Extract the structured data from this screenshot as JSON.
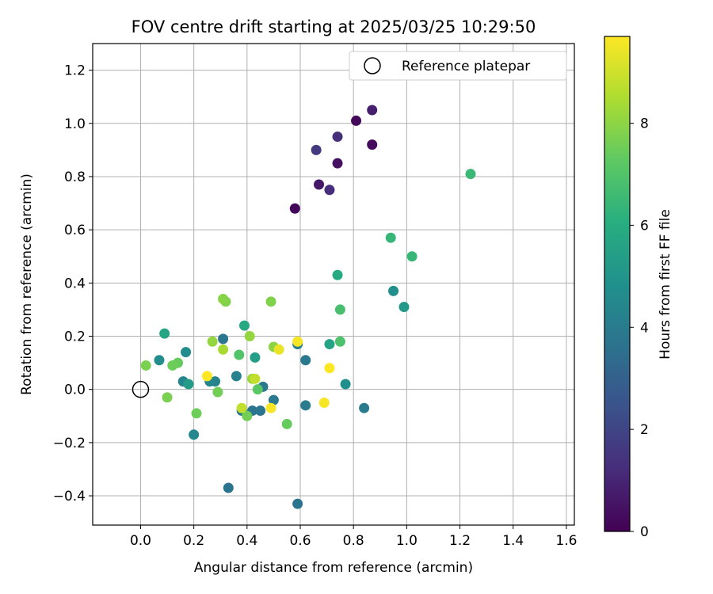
{
  "chart_data": {
    "type": "scatter",
    "title": "FOV centre drift starting at 2025/03/25 10:29:50",
    "xlabel": "Angular distance from reference (arcmin)",
    "ylabel": "Rotation from reference (arcmin)",
    "xlim": [
      -0.18,
      1.63
    ],
    "ylim": [
      -0.51,
      1.3
    ],
    "xticks": [
      0.0,
      0.2,
      0.4,
      0.6,
      0.8,
      1.0,
      1.2,
      1.4,
      1.6
    ],
    "xtick_labels": [
      "0.0",
      "0.2",
      "0.4",
      "0.6",
      "0.8",
      "1.0",
      "1.2",
      "1.4",
      "1.6"
    ],
    "yticks": [
      -0.4,
      -0.2,
      0.0,
      0.2,
      0.4,
      0.6,
      0.8,
      1.0,
      1.2
    ],
    "ytick_labels": [
      "−0.4",
      "−0.2",
      "0.0",
      "0.2",
      "0.4",
      "0.6",
      "0.8",
      "1.0",
      "1.2"
    ],
    "grid": true,
    "legend": {
      "position": "top-right",
      "entries": [
        "Reference platepar"
      ]
    },
    "colorbar": {
      "label": "Hours from first FF file",
      "colormap": "viridis",
      "range": [
        0,
        9.7
      ],
      "ticks": [
        0,
        2,
        4,
        6,
        8
      ],
      "tick_labels": [
        "0",
        "2",
        "4",
        "6",
        "8"
      ]
    },
    "reference_point": {
      "x": 0.0,
      "y": 0.0
    },
    "points": [
      {
        "x": 0.58,
        "y": 0.68,
        "hours": 0.2
      },
      {
        "x": 0.81,
        "y": 1.01,
        "hours": 0.2
      },
      {
        "x": 0.87,
        "y": 0.92,
        "hours": 0.3
      },
      {
        "x": 0.74,
        "y": 0.85,
        "hours": 0.4
      },
      {
        "x": 0.67,
        "y": 0.77,
        "hours": 0.6
      },
      {
        "x": 0.87,
        "y": 1.05,
        "hours": 0.8
      },
      {
        "x": 0.71,
        "y": 0.75,
        "hours": 1.2
      },
      {
        "x": 0.74,
        "y": 0.95,
        "hours": 1.3
      },
      {
        "x": 0.66,
        "y": 0.9,
        "hours": 1.6
      },
      {
        "x": 0.33,
        "y": -0.37,
        "hours": 3.7
      },
      {
        "x": 0.59,
        "y": -0.43,
        "hours": 3.7
      },
      {
        "x": 0.31,
        "y": 0.19,
        "hours": 3.8
      },
      {
        "x": 0.42,
        "y": -0.08,
        "hours": 3.8
      },
      {
        "x": 0.45,
        "y": -0.08,
        "hours": 3.8
      },
      {
        "x": 0.5,
        "y": -0.04,
        "hours": 3.9
      },
      {
        "x": 0.38,
        "y": -0.08,
        "hours": 3.9
      },
      {
        "x": 0.46,
        "y": 0.01,
        "hours": 3.9
      },
      {
        "x": 0.62,
        "y": 0.11,
        "hours": 3.9
      },
      {
        "x": 0.62,
        "y": -0.06,
        "hours": 4.0
      },
      {
        "x": 0.84,
        "y": -0.07,
        "hours": 4.0
      },
      {
        "x": 0.59,
        "y": 0.17,
        "hours": 4.0
      },
      {
        "x": 0.36,
        "y": 0.05,
        "hours": 4.3
      },
      {
        "x": 0.28,
        "y": 0.03,
        "hours": 4.3
      },
      {
        "x": 0.26,
        "y": 0.03,
        "hours": 4.4
      },
      {
        "x": 0.16,
        "y": 0.03,
        "hours": 4.4
      },
      {
        "x": 0.2,
        "y": -0.17,
        "hours": 4.5
      },
      {
        "x": 0.07,
        "y": 0.11,
        "hours": 4.7
      },
      {
        "x": 0.17,
        "y": 0.14,
        "hours": 4.7
      },
      {
        "x": 0.77,
        "y": 0.02,
        "hours": 4.8
      },
      {
        "x": 0.95,
        "y": 0.37,
        "hours": 4.8
      },
      {
        "x": 0.99,
        "y": 0.31,
        "hours": 5.2
      },
      {
        "x": 0.18,
        "y": 0.02,
        "hours": 5.3
      },
      {
        "x": 0.43,
        "y": 0.12,
        "hours": 5.4
      },
      {
        "x": 0.71,
        "y": 0.17,
        "hours": 5.6
      },
      {
        "x": 0.09,
        "y": 0.21,
        "hours": 5.7
      },
      {
        "x": 0.39,
        "y": 0.24,
        "hours": 5.8
      },
      {
        "x": 0.74,
        "y": 0.43,
        "hours": 5.9
      },
      {
        "x": 0.94,
        "y": 0.57,
        "hours": 6.4
      },
      {
        "x": 1.02,
        "y": 0.5,
        "hours": 6.4
      },
      {
        "x": 1.24,
        "y": 0.81,
        "hours": 6.5
      },
      {
        "x": 0.75,
        "y": 0.3,
        "hours": 6.8
      },
      {
        "x": 0.75,
        "y": 0.18,
        "hours": 6.9
      },
      {
        "x": 0.37,
        "y": 0.13,
        "hours": 7.0
      },
      {
        "x": 0.44,
        "y": 0.0,
        "hours": 7.2
      },
      {
        "x": 0.14,
        "y": 0.1,
        "hours": 7.4
      },
      {
        "x": 0.55,
        "y": -0.13,
        "hours": 7.4
      },
      {
        "x": 0.21,
        "y": -0.09,
        "hours": 7.5
      },
      {
        "x": 0.12,
        "y": 0.09,
        "hours": 7.5
      },
      {
        "x": 0.29,
        "y": -0.01,
        "hours": 7.6
      },
      {
        "x": 0.4,
        "y": -0.1,
        "hours": 7.6
      },
      {
        "x": 0.1,
        "y": -0.03,
        "hours": 7.7
      },
      {
        "x": 0.02,
        "y": 0.09,
        "hours": 7.7
      },
      {
        "x": 0.49,
        "y": 0.33,
        "hours": 7.8
      },
      {
        "x": 0.32,
        "y": 0.33,
        "hours": 7.8
      },
      {
        "x": 0.31,
        "y": 0.34,
        "hours": 7.9
      },
      {
        "x": 0.5,
        "y": 0.16,
        "hours": 8.0
      },
      {
        "x": 0.27,
        "y": 0.18,
        "hours": 8.1
      },
      {
        "x": 0.41,
        "y": 0.2,
        "hours": 8.1
      },
      {
        "x": 0.42,
        "y": 0.04,
        "hours": 8.2
      },
      {
        "x": 0.31,
        "y": 0.15,
        "hours": 8.4
      },
      {
        "x": 0.38,
        "y": -0.07,
        "hours": 8.8
      },
      {
        "x": 0.43,
        "y": 0.04,
        "hours": 8.8
      },
      {
        "x": 0.52,
        "y": 0.15,
        "hours": 9.4
      },
      {
        "x": 0.49,
        "y": -0.07,
        "hours": 9.6
      },
      {
        "x": 0.59,
        "y": 0.18,
        "hours": 9.6
      },
      {
        "x": 0.69,
        "y": -0.05,
        "hours": 9.6
      },
      {
        "x": 0.71,
        "y": 0.08,
        "hours": 9.7
      },
      {
        "x": 0.25,
        "y": 0.05,
        "hours": 9.7
      }
    ]
  }
}
